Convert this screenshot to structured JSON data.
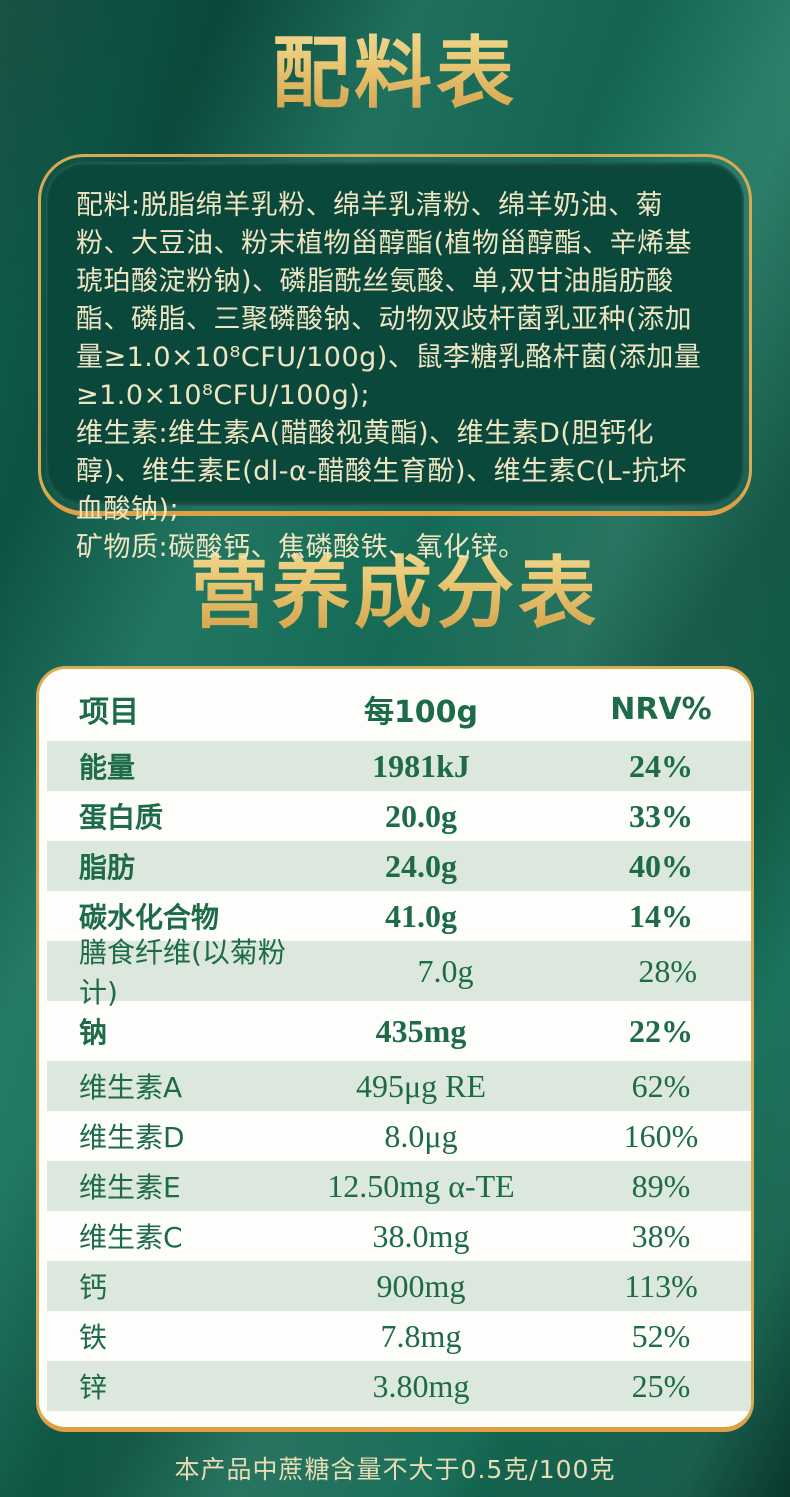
{
  "colors": {
    "gold_border": "#d9a953",
    "gold_border_bottom": "#e09f44",
    "gold_title_light": "#f4e2a6",
    "gold_title_dark": "#d2a047",
    "ingredients_panel_green": "#0b483c",
    "page_green": "#14705a",
    "cream_text": "#f0e5c2",
    "table_text_green": "#1d6b47",
    "shaded_row": "#dce7dd",
    "table_background": "#fdfdfb"
  },
  "titles": {
    "ingredients": "配料表",
    "nutrition": "营养成分表"
  },
  "ingredients": {
    "paragraphs": [
      "配料:脱脂绵羊乳粉、绵羊乳清粉、绵羊奶油、菊粉、大豆油、粉末植物甾醇酯(植物甾醇酯、辛烯基琥珀酸淀粉钠)、磷脂酰丝氨酸、单,双甘油脂肪酸酯、磷脂、三聚磷酸钠、动物双歧杆菌乳亚种(添加量≥1.0×10⁸CFU/100g)、鼠李糖乳酪杆菌(添加量≥1.0×10⁸CFU/100g);",
      "维生素:维生素A(醋酸视黄酯)、维生素D(胆钙化醇)、维生素E(dl-α-醋酸生育酚)、维生素C(L-抗坏血酸钠);",
      "矿物质:碳酸钙、焦磷酸铁、氧化锌。"
    ]
  },
  "nutrition_table": {
    "columns": [
      "项目",
      "每100g",
      "NRV%"
    ],
    "rows": [
      {
        "name": "能量",
        "per100g": "1981kJ",
        "nrv": "24%",
        "bold": true,
        "tall": false
      },
      {
        "name": "蛋白质",
        "per100g": "20.0g",
        "nrv": "33%",
        "bold": true,
        "tall": false
      },
      {
        "name": "脂肪",
        "per100g": "24.0g",
        "nrv": "40%",
        "bold": true,
        "tall": false
      },
      {
        "name": "碳水化合物",
        "per100g": "41.0g",
        "nrv": "14%",
        "bold": true,
        "tall": false
      },
      {
        "name": "膳食纤维(以菊粉计)",
        "per100g": "7.0g",
        "nrv": "28%",
        "bold": false,
        "tall": true
      },
      {
        "name": "钠",
        "per100g": "435mg",
        "nrv": "22%",
        "bold": true,
        "tall": true
      },
      {
        "name": "维生素A",
        "per100g": "495μg RE",
        "nrv": "62%",
        "bold": false,
        "tall": false
      },
      {
        "name": "维生素D",
        "per100g": "8.0μg",
        "nrv": "160%",
        "bold": false,
        "tall": false
      },
      {
        "name": "维生素E",
        "per100g": "12.50mg α-TE",
        "nrv": "89%",
        "bold": false,
        "tall": false
      },
      {
        "name": "维生素C",
        "per100g": "38.0mg",
        "nrv": "38%",
        "bold": false,
        "tall": false
      },
      {
        "name": "钙",
        "per100g": "900mg",
        "nrv": "113%",
        "bold": false,
        "tall": false
      },
      {
        "name": "铁",
        "per100g": "7.8mg",
        "nrv": "52%",
        "bold": false,
        "tall": false
      },
      {
        "name": "锌",
        "per100g": "3.80mg",
        "nrv": "25%",
        "bold": false,
        "tall": false
      }
    ]
  },
  "footnote": "本产品中蔗糖含量不大于0.5克/100克"
}
